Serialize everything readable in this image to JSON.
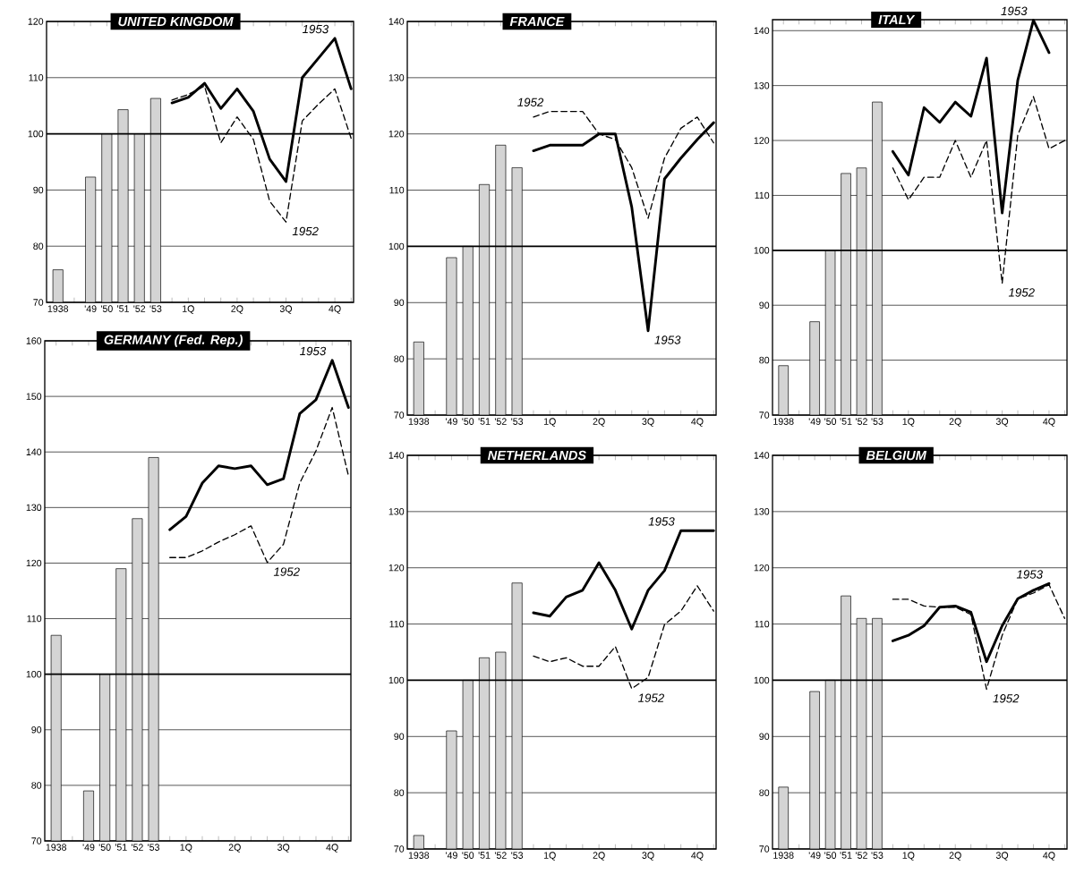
{
  "chart_data": [
    {
      "type": "bar",
      "title": "UNITED KINGDOM",
      "categories": [
        "1938",
        null,
        "'49",
        "'50",
        "'51",
        "'52",
        "'53",
        null,
        "1Q",
        null,
        null,
        "2Q",
        null,
        null,
        "3Q",
        null,
        null,
        "4Q",
        null
      ],
      "ylim": [
        70,
        120
      ],
      "yticks": [
        70,
        80,
        90,
        100,
        110,
        120
      ],
      "grid": "y",
      "ref_lines": [
        {
          "axis": "y",
          "value": 100
        }
      ],
      "series": [
        {
          "color": "#d4d4d4",
          "values": [
            75.8,
            null,
            92.3,
            100,
            104.3,
            100,
            106.3,
            null,
            null,
            null,
            null,
            null,
            null,
            null,
            null,
            null,
            null,
            null,
            null
          ]
        },
        {
          "type": "line",
          "name": "1953",
          "color": "#000000",
          "line_style": "solid",
          "values": [
            null,
            null,
            null,
            null,
            null,
            null,
            null,
            105.5,
            106.5,
            109,
            104.5,
            108,
            104,
            95.5,
            91.5,
            110,
            113.5,
            117,
            108
          ]
        },
        {
          "type": "line",
          "name": "1952",
          "color": "#000000",
          "line_style": "dashed",
          "values": [
            null,
            null,
            null,
            null,
            null,
            null,
            null,
            106,
            107,
            108.5,
            98.4,
            103,
            99,
            88,
            84.3,
            102.3,
            105.3,
            108,
            99.2
          ]
        }
      ]
    },
    {
      "type": "bar",
      "title": "FRANCE",
      "categories": [
        "1938",
        null,
        "'49",
        "'50",
        "'51",
        "'52",
        "'53",
        null,
        "1Q",
        null,
        null,
        "2Q",
        null,
        null,
        "3Q",
        null,
        null,
        "4Q",
        null
      ],
      "ylim": [
        70,
        140
      ],
      "yticks": [
        70,
        80,
        90,
        100,
        110,
        120,
        130,
        140
      ],
      "grid": "y",
      "ref_lines": [
        {
          "axis": "y",
          "value": 100
        }
      ],
      "series": [
        {
          "color": "#d4d4d4",
          "values": [
            83,
            null,
            98,
            100,
            111,
            118,
            114,
            null,
            null,
            null,
            null,
            null,
            null,
            null,
            null,
            null,
            null,
            null,
            null
          ]
        },
        {
          "type": "line",
          "name": "1953",
          "color": "#000000",
          "line_style": "solid",
          "values": [
            null,
            null,
            null,
            null,
            null,
            null,
            null,
            117,
            118,
            118,
            118,
            120,
            120,
            107,
            85,
            112,
            115.7,
            119,
            122
          ]
        },
        {
          "type": "line",
          "name": "1952",
          "color": "#000000",
          "line_style": "dashed",
          "values": [
            null,
            null,
            null,
            null,
            null,
            null,
            null,
            123,
            124,
            124,
            124,
            120,
            119,
            114,
            105,
            115.7,
            121,
            123,
            118.4
          ]
        }
      ]
    },
    {
      "type": "bar",
      "title": "ITALY",
      "categories": [
        "1938",
        null,
        "'49",
        "'50",
        "'51",
        "'52",
        "'53",
        null,
        "1Q",
        null,
        null,
        "2Q",
        null,
        null,
        "3Q",
        null,
        null,
        "4Q",
        null
      ],
      "ylim": [
        70,
        142
      ],
      "yticks": [
        70,
        80,
        90,
        100,
        110,
        120,
        130,
        140
      ],
      "grid": "y",
      "ref_lines": [
        {
          "axis": "y",
          "value": 100
        }
      ],
      "series": [
        {
          "color": "#d4d4d4",
          "values": [
            79,
            null,
            87,
            100,
            114,
            115,
            127,
            null,
            null,
            null,
            null,
            null,
            null,
            null,
            null,
            null,
            null,
            null,
            null
          ]
        },
        {
          "type": "line",
          "name": "1953",
          "color": "#000000",
          "line_style": "solid",
          "values": [
            null,
            null,
            null,
            null,
            null,
            null,
            null,
            118,
            113.7,
            126,
            123.3,
            127,
            124.4,
            135,
            106.8,
            131,
            141.9,
            136,
            null
          ]
        },
        {
          "type": "line",
          "name": "1952",
          "color": "#000000",
          "line_style": "dashed",
          "values": [
            null,
            null,
            null,
            null,
            null,
            null,
            null,
            115,
            109.2,
            113.3,
            113.3,
            120,
            113.3,
            120,
            94,
            121,
            128,
            118.5,
            120
          ]
        }
      ]
    },
    {
      "type": "bar",
      "title": "GERMANY (Fed. Rep.)",
      "categories": [
        "1938",
        null,
        "'49",
        "'50",
        "'51",
        "'52",
        "'53",
        null,
        "1Q",
        null,
        null,
        "2Q",
        null,
        null,
        "3Q",
        null,
        null,
        "4Q",
        null
      ],
      "ylim": [
        70,
        160
      ],
      "yticks": [
        70,
        80,
        90,
        100,
        110,
        120,
        130,
        140,
        150,
        160
      ],
      "grid": "y",
      "ref_lines": [
        {
          "axis": "y",
          "value": 100
        }
      ],
      "series": [
        {
          "color": "#d4d4d4",
          "values": [
            107,
            null,
            79,
            100,
            119,
            128,
            139,
            null,
            null,
            null,
            null,
            null,
            null,
            null,
            null,
            null,
            null,
            null,
            null
          ]
        },
        {
          "type": "line",
          "name": "1953",
          "color": "#000000",
          "line_style": "solid",
          "values": [
            null,
            null,
            null,
            null,
            null,
            null,
            null,
            126,
            128.4,
            134.4,
            137.5,
            137,
            137.5,
            134.1,
            135.2,
            146.9,
            149.4,
            156.5,
            148
          ]
        },
        {
          "type": "line",
          "name": "1952",
          "color": "#000000",
          "line_style": "dashed",
          "values": [
            null,
            null,
            null,
            null,
            null,
            null,
            null,
            121,
            121,
            122.2,
            123.8,
            125.1,
            126.7,
            120.1,
            123.4,
            134.4,
            140.2,
            148,
            135.7
          ]
        }
      ]
    },
    {
      "type": "bar",
      "title": "NETHERLANDS",
      "categories": [
        "1938",
        null,
        "'49",
        "'50",
        "'51",
        "'52",
        "'53",
        null,
        "1Q",
        null,
        null,
        "2Q",
        null,
        null,
        "3Q",
        null,
        null,
        "4Q",
        null
      ],
      "ylim": [
        70,
        140
      ],
      "yticks": [
        70,
        80,
        90,
        100,
        110,
        120,
        130,
        140
      ],
      "grid": "y",
      "ref_lines": [
        {
          "axis": "y",
          "value": 100
        }
      ],
      "series": [
        {
          "color": "#d4d4d4",
          "values": [
            72.4,
            null,
            91,
            100,
            104,
            105,
            117.3,
            null,
            null,
            null,
            null,
            null,
            null,
            null,
            null,
            null,
            null,
            null,
            null
          ]
        },
        {
          "type": "line",
          "name": "1953",
          "color": "#000000",
          "line_style": "solid",
          "values": [
            null,
            null,
            null,
            null,
            null,
            null,
            null,
            112,
            111.4,
            114.8,
            116,
            120.9,
            116,
            109.1,
            116,
            119.5,
            126.6,
            126.6,
            126.6
          ]
        },
        {
          "type": "line",
          "name": "1952",
          "color": "#000000",
          "line_style": "dashed",
          "values": [
            null,
            null,
            null,
            null,
            null,
            null,
            null,
            104.3,
            103.3,
            104,
            102.5,
            102.5,
            106,
            98.5,
            100.5,
            109.9,
            112.3,
            116.8,
            112.3
          ]
        }
      ]
    },
    {
      "type": "bar",
      "title": "BELGIUM",
      "categories": [
        "1938",
        null,
        "'49",
        "'50",
        "'51",
        "'52",
        "'53",
        null,
        "1Q",
        null,
        null,
        "2Q",
        null,
        null,
        "3Q",
        null,
        null,
        "4Q",
        null
      ],
      "ylim": [
        70,
        140
      ],
      "yticks": [
        70,
        80,
        90,
        100,
        110,
        120,
        130,
        140
      ],
      "grid": "y",
      "ref_lines": [
        {
          "axis": "y",
          "value": 100
        }
      ],
      "series": [
        {
          "color": "#d4d4d4",
          "values": [
            81,
            null,
            98,
            100,
            115,
            111,
            111,
            null,
            null,
            null,
            null,
            null,
            null,
            null,
            null,
            null,
            null,
            null,
            null
          ]
        },
        {
          "type": "line",
          "name": "1953",
          "color": "#000000",
          "line_style": "solid",
          "values": [
            null,
            null,
            null,
            null,
            null,
            null,
            null,
            107,
            108,
            109.7,
            113,
            113.2,
            112.1,
            103.3,
            109.7,
            114.5,
            116,
            117.2,
            null
          ]
        },
        {
          "type": "line",
          "name": "1952",
          "color": "#000000",
          "line_style": "dashed",
          "values": [
            null,
            null,
            null,
            null,
            null,
            null,
            null,
            114.4,
            114.4,
            113.2,
            113,
            113,
            111.7,
            98.4,
            108,
            114.5,
            115.5,
            117,
            111
          ]
        }
      ]
    }
  ]
}
